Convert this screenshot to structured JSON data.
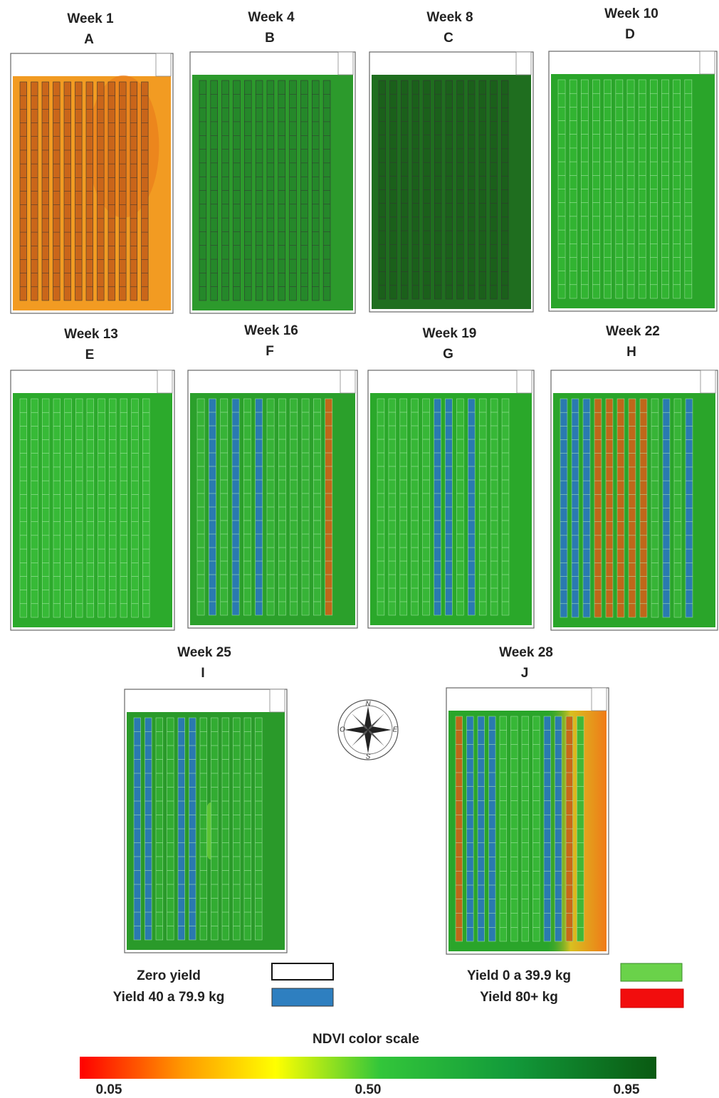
{
  "panels": [
    {
      "week": "Week 1",
      "letter": "A"
    },
    {
      "week": "Week 4",
      "letter": "B"
    },
    {
      "week": "Week 8",
      "letter": "C"
    },
    {
      "week": "Week 10",
      "letter": "D"
    },
    {
      "week": "Week 13",
      "letter": "E"
    },
    {
      "week": "Week 16",
      "letter": "F"
    },
    {
      "week": "Week 19",
      "letter": "G"
    },
    {
      "week": "Week 22",
      "letter": "H"
    },
    {
      "week": "Week 25",
      "letter": "I"
    },
    {
      "week": "Week 28",
      "letter": "J"
    }
  ],
  "compass": {
    "north": "N",
    "east": "E",
    "south": "S",
    "west": "O"
  },
  "legend": [
    {
      "label": "Zero yield"
    },
    {
      "label": "Yield 40 a 79.9 kg"
    },
    {
      "label": "Yield 0 a 39.9 kg"
    },
    {
      "label": "Yield 80+ kg"
    }
  ],
  "color_scale": {
    "title": "NDVI color scale",
    "ticks": [
      "0.05",
      "0.50",
      "0.95"
    ]
  }
}
